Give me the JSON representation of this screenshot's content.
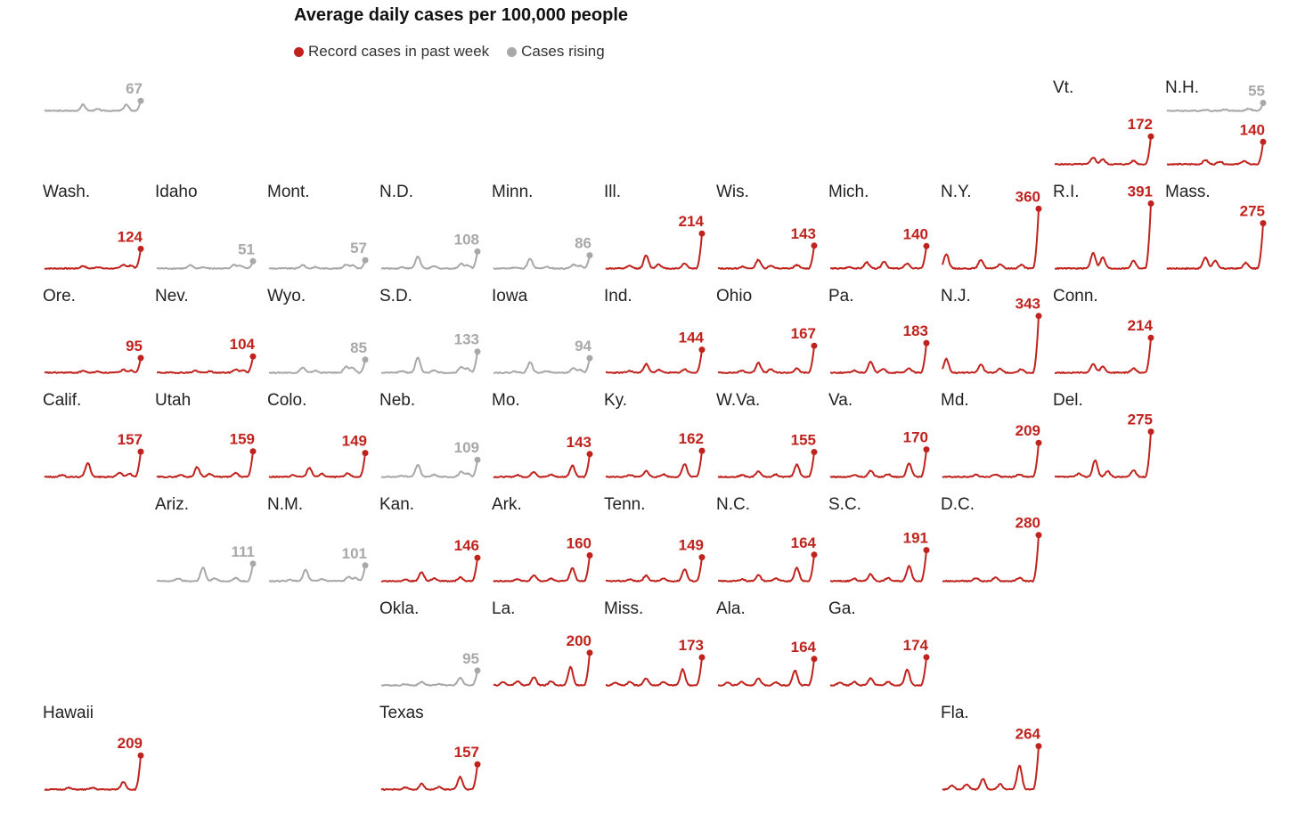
{
  "chart_data": {
    "type": "line",
    "title": "Average daily cases per 100,000 people",
    "legend": [
      {
        "label": "Record cases in past week",
        "status": "record",
        "color": "#c0231e"
      },
      {
        "label": "Cases rising",
        "status": "rising",
        "color": "#a8a8a8"
      }
    ],
    "colors": {
      "record": "#c0231e",
      "rising": "#a8a8a8"
    },
    "states": [
      {
        "name": "",
        "row": 0,
        "col": 0,
        "value": 67,
        "status": "rising",
        "shape": "alaska"
      },
      {
        "name": "",
        "row": 0,
        "col": 11,
        "value": 55,
        "status": "rising",
        "shape": "maine"
      },
      {
        "name": "Vt.",
        "row": 1,
        "col": 9,
        "value": 172,
        "status": "record",
        "shape": "ne"
      },
      {
        "name": "N.H.",
        "row": 1,
        "col": 10,
        "value": 140,
        "status": "record",
        "shape": "ne2"
      },
      {
        "name": "Wash.",
        "row": 2,
        "col": 0,
        "value": 124,
        "status": "record",
        "shape": "west"
      },
      {
        "name": "Idaho",
        "row": 2,
        "col": 1,
        "value": 51,
        "status": "rising",
        "shape": "mountain"
      },
      {
        "name": "Mont.",
        "row": 2,
        "col": 2,
        "value": 57,
        "status": "rising",
        "shape": "mountain"
      },
      {
        "name": "N.D.",
        "row": 2,
        "col": 3,
        "value": 108,
        "status": "rising",
        "shape": "plains"
      },
      {
        "name": "Minn.",
        "row": 2,
        "col": 4,
        "value": 86,
        "status": "rising",
        "shape": "plains"
      },
      {
        "name": "Ill.",
        "row": 2,
        "col": 5,
        "value": 214,
        "status": "record",
        "shape": "midwest"
      },
      {
        "name": "Wis.",
        "row": 2,
        "col": 6,
        "value": 143,
        "status": "record",
        "shape": "midwest"
      },
      {
        "name": "Mich.",
        "row": 2,
        "col": 7,
        "value": 140,
        "status": "record",
        "shape": "mich"
      },
      {
        "name": "N.Y.",
        "row": 2,
        "col": 8,
        "value": 360,
        "status": "record",
        "shape": "ny"
      },
      {
        "name": "R.I.",
        "row": 2,
        "col": 9,
        "value": 391,
        "status": "record",
        "shape": "ne"
      },
      {
        "name": "Mass.",
        "row": 2,
        "col": 10,
        "value": 275,
        "status": "record",
        "shape": "ne"
      },
      {
        "name": "Ore.",
        "row": 3,
        "col": 0,
        "value": 95,
        "status": "record",
        "shape": "west"
      },
      {
        "name": "Nev.",
        "row": 3,
        "col": 1,
        "value": 104,
        "status": "record",
        "shape": "west"
      },
      {
        "name": "Wyo.",
        "row": 3,
        "col": 2,
        "value": 85,
        "status": "rising",
        "shape": "mountain"
      },
      {
        "name": "S.D.",
        "row": 3,
        "col": 3,
        "value": 133,
        "status": "rising",
        "shape": "plains"
      },
      {
        "name": "Iowa",
        "row": 3,
        "col": 4,
        "value": 94,
        "status": "rising",
        "shape": "plains"
      },
      {
        "name": "Ind.",
        "row": 3,
        "col": 5,
        "value": 144,
        "status": "record",
        "shape": "midwest"
      },
      {
        "name": "Ohio",
        "row": 3,
        "col": 6,
        "value": 167,
        "status": "record",
        "shape": "midwest"
      },
      {
        "name": "Pa.",
        "row": 3,
        "col": 7,
        "value": 183,
        "status": "record",
        "shape": "midwest"
      },
      {
        "name": "N.J.",
        "row": 3,
        "col": 8,
        "value": 343,
        "status": "record",
        "shape": "ny"
      },
      {
        "name": "Conn.",
        "row": 3,
        "col": 9,
        "value": 214,
        "status": "record",
        "shape": "ne"
      },
      {
        "name": "Calif.",
        "row": 4,
        "col": 0,
        "value": 157,
        "status": "record",
        "shape": "calif"
      },
      {
        "name": "Utah",
        "row": 4,
        "col": 1,
        "value": 159,
        "status": "record",
        "shape": "midwest"
      },
      {
        "name": "Colo.",
        "row": 4,
        "col": 2,
        "value": 149,
        "status": "record",
        "shape": "midwest"
      },
      {
        "name": "Neb.",
        "row": 4,
        "col": 3,
        "value": 109,
        "status": "rising",
        "shape": "plains"
      },
      {
        "name": "Mo.",
        "row": 4,
        "col": 4,
        "value": 143,
        "status": "record",
        "shape": "south"
      },
      {
        "name": "Ky.",
        "row": 4,
        "col": 5,
        "value": 162,
        "status": "record",
        "shape": "south"
      },
      {
        "name": "W.Va.",
        "row": 4,
        "col": 6,
        "value": 155,
        "status": "record",
        "shape": "south"
      },
      {
        "name": "Va.",
        "row": 4,
        "col": 7,
        "value": 170,
        "status": "record",
        "shape": "south"
      },
      {
        "name": "Md.",
        "row": 4,
        "col": 8,
        "value": 209,
        "status": "record",
        "shape": "flat"
      },
      {
        "name": "Del.",
        "row": 4,
        "col": 9,
        "value": 275,
        "status": "record",
        "shape": "midwest"
      },
      {
        "name": "Ariz.",
        "row": 5,
        "col": 1,
        "value": 111,
        "status": "rising",
        "shape": "sw"
      },
      {
        "name": "N.M.",
        "row": 5,
        "col": 2,
        "value": 101,
        "status": "rising",
        "shape": "plains"
      },
      {
        "name": "Kan.",
        "row": 5,
        "col": 3,
        "value": 146,
        "status": "record",
        "shape": "midwest"
      },
      {
        "name": "Ark.",
        "row": 5,
        "col": 4,
        "value": 160,
        "status": "record",
        "shape": "south"
      },
      {
        "name": "Tenn.",
        "row": 5,
        "col": 5,
        "value": 149,
        "status": "record",
        "shape": "south"
      },
      {
        "name": "N.C.",
        "row": 5,
        "col": 6,
        "value": 164,
        "status": "record",
        "shape": "south"
      },
      {
        "name": "S.C.",
        "row": 5,
        "col": 7,
        "value": 191,
        "status": "record",
        "shape": "south"
      },
      {
        "name": "D.C.",
        "row": 5,
        "col": 8,
        "value": 280,
        "status": "record",
        "shape": "flat"
      },
      {
        "name": "Okla.",
        "row": 6,
        "col": 3,
        "value": 95,
        "status": "rising",
        "shape": "south"
      },
      {
        "name": "La.",
        "row": 6,
        "col": 4,
        "value": 200,
        "status": "record",
        "shape": "deep"
      },
      {
        "name": "Miss.",
        "row": 6,
        "col": 5,
        "value": 173,
        "status": "record",
        "shape": "deep"
      },
      {
        "name": "Ala.",
        "row": 6,
        "col": 6,
        "value": 164,
        "status": "record",
        "shape": "deep"
      },
      {
        "name": "Ga.",
        "row": 6,
        "col": 7,
        "value": 174,
        "status": "record",
        "shape": "deep"
      },
      {
        "name": "Hawaii",
        "row": 7,
        "col": 0,
        "value": 209,
        "status": "record",
        "shape": "hawaii"
      },
      {
        "name": "Texas",
        "row": 7,
        "col": 3,
        "value": 157,
        "status": "record",
        "shape": "south"
      },
      {
        "name": "Fla.",
        "row": 7,
        "col": 8,
        "value": 264,
        "status": "record",
        "shape": "deep"
      }
    ]
  }
}
